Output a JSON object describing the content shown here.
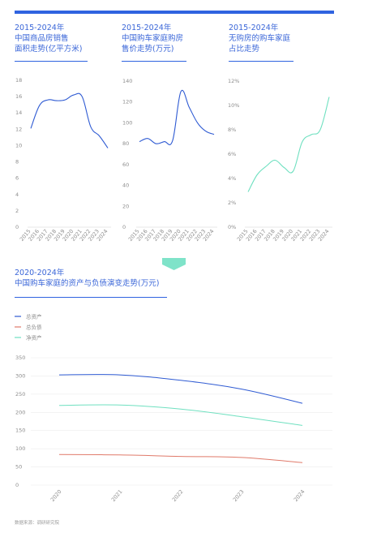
{
  "colors": {
    "accent": "#2f63e0",
    "series_total_assets": "#2f5bd3",
    "series_total_debt": "#e07a6a",
    "series_net_assets": "#6fe0c0",
    "grid": "#ececec",
    "chevron": "#7fe3c9"
  },
  "titles": {
    "chart1": [
      "2015-2024年",
      "中国商品房销售",
      "面积走势(亿平方米)"
    ],
    "chart2": [
      "2015-2024年",
      "中国购车家庭购房",
      "售价走势(万元)"
    ],
    "chart3": [
      "2015-2024年",
      "无购房的购车家庭",
      "占比走势"
    ],
    "chart4": [
      "2020-2024年",
      "中国购车家庭的资产与负债演变走势(万元)"
    ]
  },
  "source": "数据来源：调研研究院",
  "chart_data": [
    {
      "type": "line",
      "title": "2015-2024年 中国商品房销售面积走势(亿平方米)",
      "x": [
        "2015",
        "2016",
        "2017",
        "2018",
        "2019",
        "2020",
        "2021",
        "2022",
        "2023",
        "2024"
      ],
      "y_ticks": [
        0,
        2,
        4,
        6,
        8,
        10,
        12,
        14,
        16,
        18
      ],
      "ylim": [
        0,
        18
      ],
      "series": [
        {
          "values": [
            12.1,
            14.9,
            15.6,
            15.5,
            15.6,
            16.2,
            16.0,
            12.3,
            11.2,
            9.7
          ]
        }
      ]
    },
    {
      "type": "line",
      "title": "2015-2024年 中国购车家庭购房售价走势(万元)",
      "x": [
        "2015",
        "2016",
        "2017",
        "2018",
        "2019",
        "2020",
        "2021",
        "2022",
        "2023",
        "2024"
      ],
      "y_ticks": [
        0,
        20,
        40,
        60,
        80,
        100,
        120,
        140
      ],
      "ylim": [
        0,
        140
      ],
      "series": [
        {
          "values": [
            82,
            85,
            80,
            82,
            83,
            130,
            115,
            100,
            92,
            89
          ]
        }
      ]
    },
    {
      "type": "line",
      "title": "2015-2024年 无购房的购车家庭占比走势",
      "x": [
        "2015",
        "2016",
        "2017",
        "2018",
        "2019",
        "2020",
        "2021",
        "2022",
        "2023",
        "2024"
      ],
      "y_ticks": [
        "0%",
        "2%",
        "4%",
        "6%",
        "8%",
        "10%",
        "12%"
      ],
      "ylim": [
        0,
        12
      ],
      "series": [
        {
          "values": [
            2.9,
            4.3,
            5.0,
            5.5,
            4.9,
            4.6,
            7.0,
            7.6,
            8.0,
            10.7
          ]
        }
      ]
    },
    {
      "type": "line",
      "title": "2020-2024年 中国购车家庭的资产与负债演变走势(万元)",
      "x": [
        "2020",
        "2021",
        "2022",
        "2023",
        "2024"
      ],
      "y_ticks": [
        0,
        50,
        100,
        150,
        200,
        250,
        300,
        350
      ],
      "ylim": [
        0,
        350
      ],
      "legend": "top-left",
      "series": [
        {
          "name": "总资产",
          "values": [
            303,
            303,
            288,
            264,
            225
          ]
        },
        {
          "name": "总负债",
          "values": [
            84,
            83,
            79,
            76,
            62
          ]
        },
        {
          "name": "净资产",
          "values": [
            219,
            220,
            209,
            188,
            164
          ]
        }
      ]
    }
  ]
}
